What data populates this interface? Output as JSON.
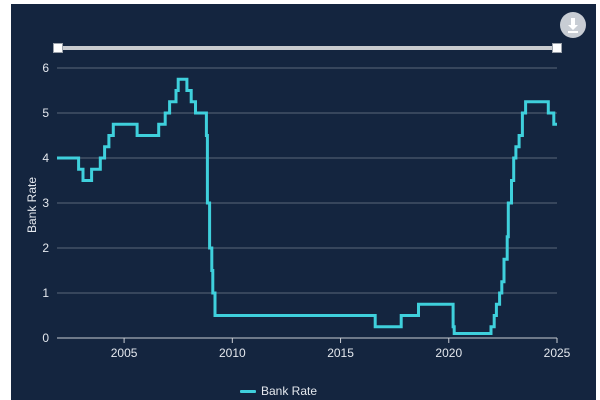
{
  "colors": {
    "background": "#14253f",
    "series": "#3fd0dc",
    "grid": "#5a6678",
    "text": "#e4e8ee"
  },
  "toolbar": {
    "download_icon": "download-icon"
  },
  "chart_data": {
    "type": "line",
    "step": true,
    "ylabel": "Bank Rate",
    "xlabel": "",
    "xlim": [
      2001.9,
      2025.0
    ],
    "ylim": [
      0,
      6
    ],
    "x_ticks": [
      2005,
      2010,
      2015,
      2020,
      2025
    ],
    "y_ticks": [
      0,
      1,
      2,
      3,
      4,
      5,
      6
    ],
    "grid": "horizontal",
    "legend": {
      "position": "bottom-center",
      "entries": [
        "Bank Rate"
      ]
    },
    "series": [
      {
        "name": "Bank Rate",
        "points": [
          [
            2001.9,
            4.0
          ],
          [
            2002.9,
            3.75
          ],
          [
            2003.1,
            3.5
          ],
          [
            2003.5,
            3.75
          ],
          [
            2003.9,
            4.0
          ],
          [
            2004.1,
            4.25
          ],
          [
            2004.3,
            4.5
          ],
          [
            2004.5,
            4.75
          ],
          [
            2005.6,
            4.5
          ],
          [
            2006.6,
            4.75
          ],
          [
            2006.9,
            5.0
          ],
          [
            2007.1,
            5.25
          ],
          [
            2007.4,
            5.5
          ],
          [
            2007.5,
            5.75
          ],
          [
            2007.9,
            5.5
          ],
          [
            2008.1,
            5.25
          ],
          [
            2008.3,
            5.0
          ],
          [
            2008.8,
            4.5
          ],
          [
            2008.85,
            3.0
          ],
          [
            2008.95,
            2.0
          ],
          [
            2009.05,
            1.5
          ],
          [
            2009.1,
            1.0
          ],
          [
            2009.2,
            0.5
          ],
          [
            2016.6,
            0.25
          ],
          [
            2017.8,
            0.5
          ],
          [
            2018.6,
            0.75
          ],
          [
            2020.2,
            0.25
          ],
          [
            2020.25,
            0.1
          ],
          [
            2021.95,
            0.25
          ],
          [
            2022.1,
            0.5
          ],
          [
            2022.2,
            0.75
          ],
          [
            2022.35,
            1.0
          ],
          [
            2022.45,
            1.25
          ],
          [
            2022.55,
            1.75
          ],
          [
            2022.7,
            2.25
          ],
          [
            2022.75,
            3.0
          ],
          [
            2022.9,
            3.5
          ],
          [
            2023.0,
            4.0
          ],
          [
            2023.1,
            4.25
          ],
          [
            2023.25,
            4.5
          ],
          [
            2023.4,
            5.0
          ],
          [
            2023.55,
            5.25
          ],
          [
            2024.6,
            5.0
          ],
          [
            2024.85,
            4.75
          ],
          [
            2025.0,
            4.75
          ]
        ]
      }
    ]
  }
}
